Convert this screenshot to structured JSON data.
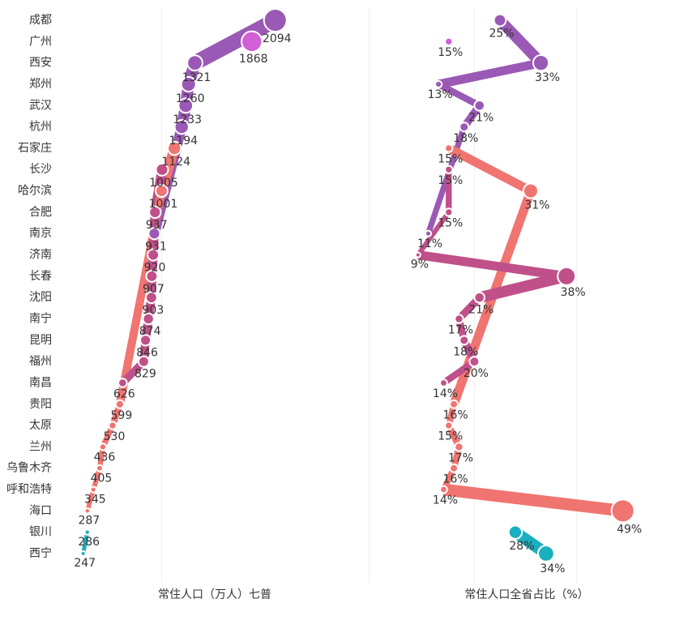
{
  "chart_data": [
    {
      "type": "dot-line",
      "xlabel": "常住人口（万人）七普",
      "categories": [
        "成都",
        "广州",
        "西安",
        "郑州",
        "武汉",
        "杭州",
        "石家庄",
        "长沙",
        "哈尔滨",
        "合肥",
        "南京",
        "济南",
        "长春",
        "沈阳",
        "南宁",
        "昆明",
        "福州",
        "南昌",
        "贵阳",
        "太原",
        "兰州",
        "乌鲁木齐",
        "呼和浩特",
        "海口",
        "银川",
        "西宁"
      ],
      "values": [
        2094,
        1868,
        1321,
        1260,
        1233,
        1194,
        1124,
        1005,
        1001,
        937,
        931,
        920,
        907,
        903,
        874,
        846,
        829,
        626,
        599,
        530,
        436,
        405,
        345,
        287,
        286,
        247
      ],
      "colors": [
        "#9b59b6",
        "#d15fd6",
        "#9b59b6",
        "#9b59b6",
        "#9b59b6",
        "#9b59b6",
        "#f07470",
        "#c0508a",
        "#f07470",
        "#c0508a",
        "#9b59b6",
        "#c0508a",
        "#c0508a",
        "#c0508a",
        "#c0508a",
        "#c0508a",
        "#c0508a",
        "#c0508a",
        "#f07470",
        "#f07470",
        "#f07470",
        "#f07470",
        "#f07470",
        "#f07470",
        "#1aafc0",
        "#1aafc0"
      ],
      "xlim": [
        0,
        3000
      ],
      "xticks": [
        1000,
        3000
      ],
      "grid": true
    },
    {
      "type": "dot-line",
      "xlabel": "常住人口全省占比（%）",
      "values": [
        25,
        15,
        33,
        13,
        21,
        18,
        15,
        15,
        31,
        15,
        11,
        9,
        38,
        21,
        17,
        18,
        20,
        14,
        16,
        15,
        17,
        16,
        14,
        49,
        28,
        34
      ],
      "value_labels": [
        "25%",
        "15%",
        "33%",
        "13%",
        "21%",
        "18%",
        "15%",
        "15%",
        "31%",
        "15%",
        "11%",
        "9%",
        "38%",
        "21%",
        "17%",
        "18%",
        "20%",
        "14%",
        "16%",
        "15%",
        "17%",
        "16%",
        "14%",
        "49%",
        "28%",
        "34%"
      ],
      "xlim": [
        0,
        50
      ],
      "xticks": [
        20,
        40
      ],
      "grid": true
    }
  ]
}
